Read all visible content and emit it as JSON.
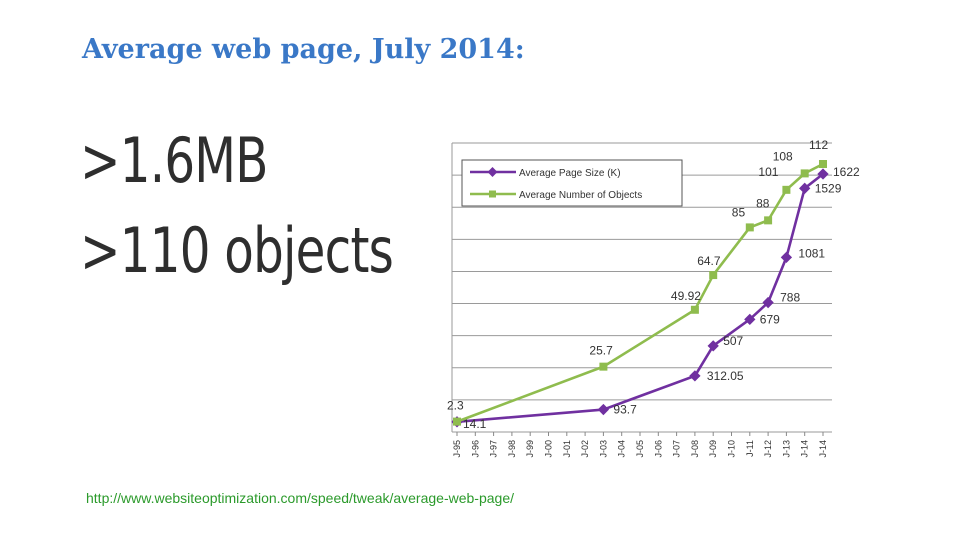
{
  "slide": {
    "title": "Average web page, July 2014:",
    "stat_size": ">1.6MB",
    "stat_objects": ">110 objects",
    "source": "http://www.websiteoptimization.com/speed/tweak/average-web-page/"
  },
  "chart_data": {
    "type": "line",
    "categories": [
      "J-95",
      "J-96",
      "J-97",
      "J-98",
      "J-99",
      "J-00",
      "J-01",
      "J-02",
      "J-03",
      "J-04",
      "J-05",
      "J-06",
      "J-07",
      "J-08",
      "J-09",
      "J-10",
      "J-11",
      "J-12",
      "J-13",
      "J-14",
      "J-14"
    ],
    "series": [
      {
        "name": "Average Page Size (K)",
        "color": "#7030a0",
        "points": [
          {
            "i": 0,
            "v": 14.1,
            "label": "14.1"
          },
          {
            "i": 8,
            "v": 93.7,
            "label": "93.7"
          },
          {
            "i": 13,
            "v": 312.05,
            "label": "312.05"
          },
          {
            "i": 14,
            "v": 507,
            "label": "507"
          },
          {
            "i": 16,
            "v": 679,
            "label": "679"
          },
          {
            "i": 17,
            "v": 788,
            "label": "788"
          },
          {
            "i": 18,
            "v": 1081,
            "label": "1081"
          },
          {
            "i": 19,
            "v": 1529,
            "label": "1529"
          },
          {
            "i": 20,
            "v": 1622,
            "label": "1622"
          }
        ]
      },
      {
        "name": "Average Number of Objects",
        "color": "#8fbc4e",
        "points": [
          {
            "i": 0,
            "v": 2.3,
            "label": "2.3"
          },
          {
            "i": 8,
            "v": 25.7,
            "label": "25.7"
          },
          {
            "i": 13,
            "v": 49.92,
            "label": "49.92"
          },
          {
            "i": 14,
            "v": 64.7,
            "label": "64.7"
          },
          {
            "i": 16,
            "v": 85,
            "label": "85"
          },
          {
            "i": 17,
            "v": 88,
            "label": "88"
          },
          {
            "i": 18,
            "v": 101,
            "label": "101"
          },
          {
            "i": 19,
            "v": 108,
            "label": "108"
          },
          {
            "i": 20,
            "v": 112,
            "label": "112"
          }
        ]
      }
    ],
    "gridlines": 9,
    "legend": "top-left",
    "axis_labels_visible": false
  }
}
